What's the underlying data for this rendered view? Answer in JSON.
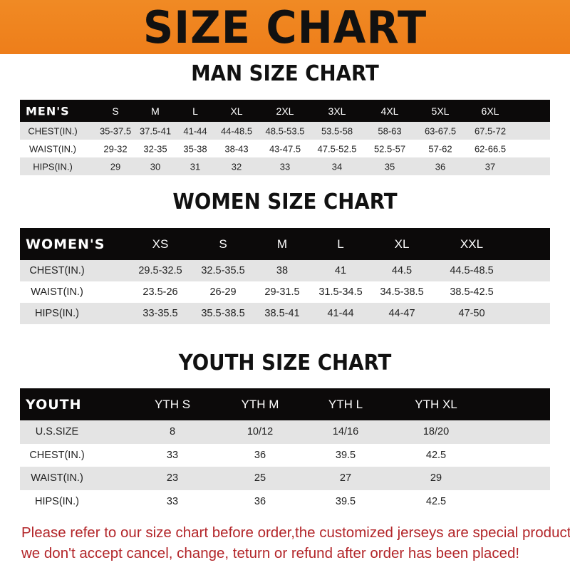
{
  "banner_title": "SIZE CHART",
  "men": {
    "title": "MAN SIZE CHART",
    "header": [
      "MEN'S",
      "S",
      "M",
      "L",
      "XL",
      "2XL",
      "3XL",
      "4XL",
      "5XL",
      "6XL"
    ],
    "rows": [
      [
        "CHEST(IN.)",
        "35-37.5",
        "37.5-41",
        "41-44",
        "44-48.5",
        "48.5-53.5",
        "53.5-58",
        "58-63",
        "63-67.5",
        "67.5-72"
      ],
      [
        "WAIST(IN.)",
        "29-32",
        "32-35",
        "35-38",
        "38-43",
        "43-47.5",
        "47.5-52.5",
        "52.5-57",
        "57-62",
        "62-66.5"
      ],
      [
        "HIPS(IN.)",
        "29",
        "30",
        "31",
        "32",
        "33",
        "34",
        "35",
        "36",
        "37"
      ]
    ]
  },
  "women": {
    "title": "WOMEN SIZE CHART",
    "header": [
      "WOMEN'S",
      "XS",
      "S",
      "M",
      "L",
      "XL",
      "XXL"
    ],
    "rows": [
      [
        "CHEST(IN.)",
        "29.5-32.5",
        "32.5-35.5",
        "38",
        "41",
        "44.5",
        "44.5-48.5"
      ],
      [
        "WAIST(IN.)",
        "23.5-26",
        "26-29",
        "29-31.5",
        "31.5-34.5",
        "34.5-38.5",
        "38.5-42.5"
      ],
      [
        "HIPS(IN.)",
        "33-35.5",
        "35.5-38.5",
        "38.5-41",
        "41-44",
        "44-47",
        "47-50"
      ]
    ]
  },
  "youth": {
    "title": "YOUTH SIZE CHART",
    "header": [
      "YOUTH",
      "YTH S",
      "YTH M",
      "YTH L",
      "YTH XL"
    ],
    "rows": [
      [
        "U.S.SIZE",
        "8",
        "10/12",
        "14/16",
        "18/20"
      ],
      [
        "CHEST(IN.)",
        "33",
        "36",
        "39.5",
        "42.5"
      ],
      [
        "WAIST(IN.)",
        "23",
        "25",
        "27",
        "29"
      ],
      [
        "HIPS(IN.)",
        "33",
        "36",
        "39.5",
        "42.5"
      ]
    ]
  },
  "note": {
    "line1": "Please refer to our size chart before order,the customized jerseys are special products,",
    "line2": "we don't accept cancel, change, teturn or refund after order has been placed!"
  },
  "colors": {
    "banner": "#ef831f",
    "header_row": "#0c0a0a",
    "stripe": "#e4e4e4",
    "note": "#b3262a"
  }
}
